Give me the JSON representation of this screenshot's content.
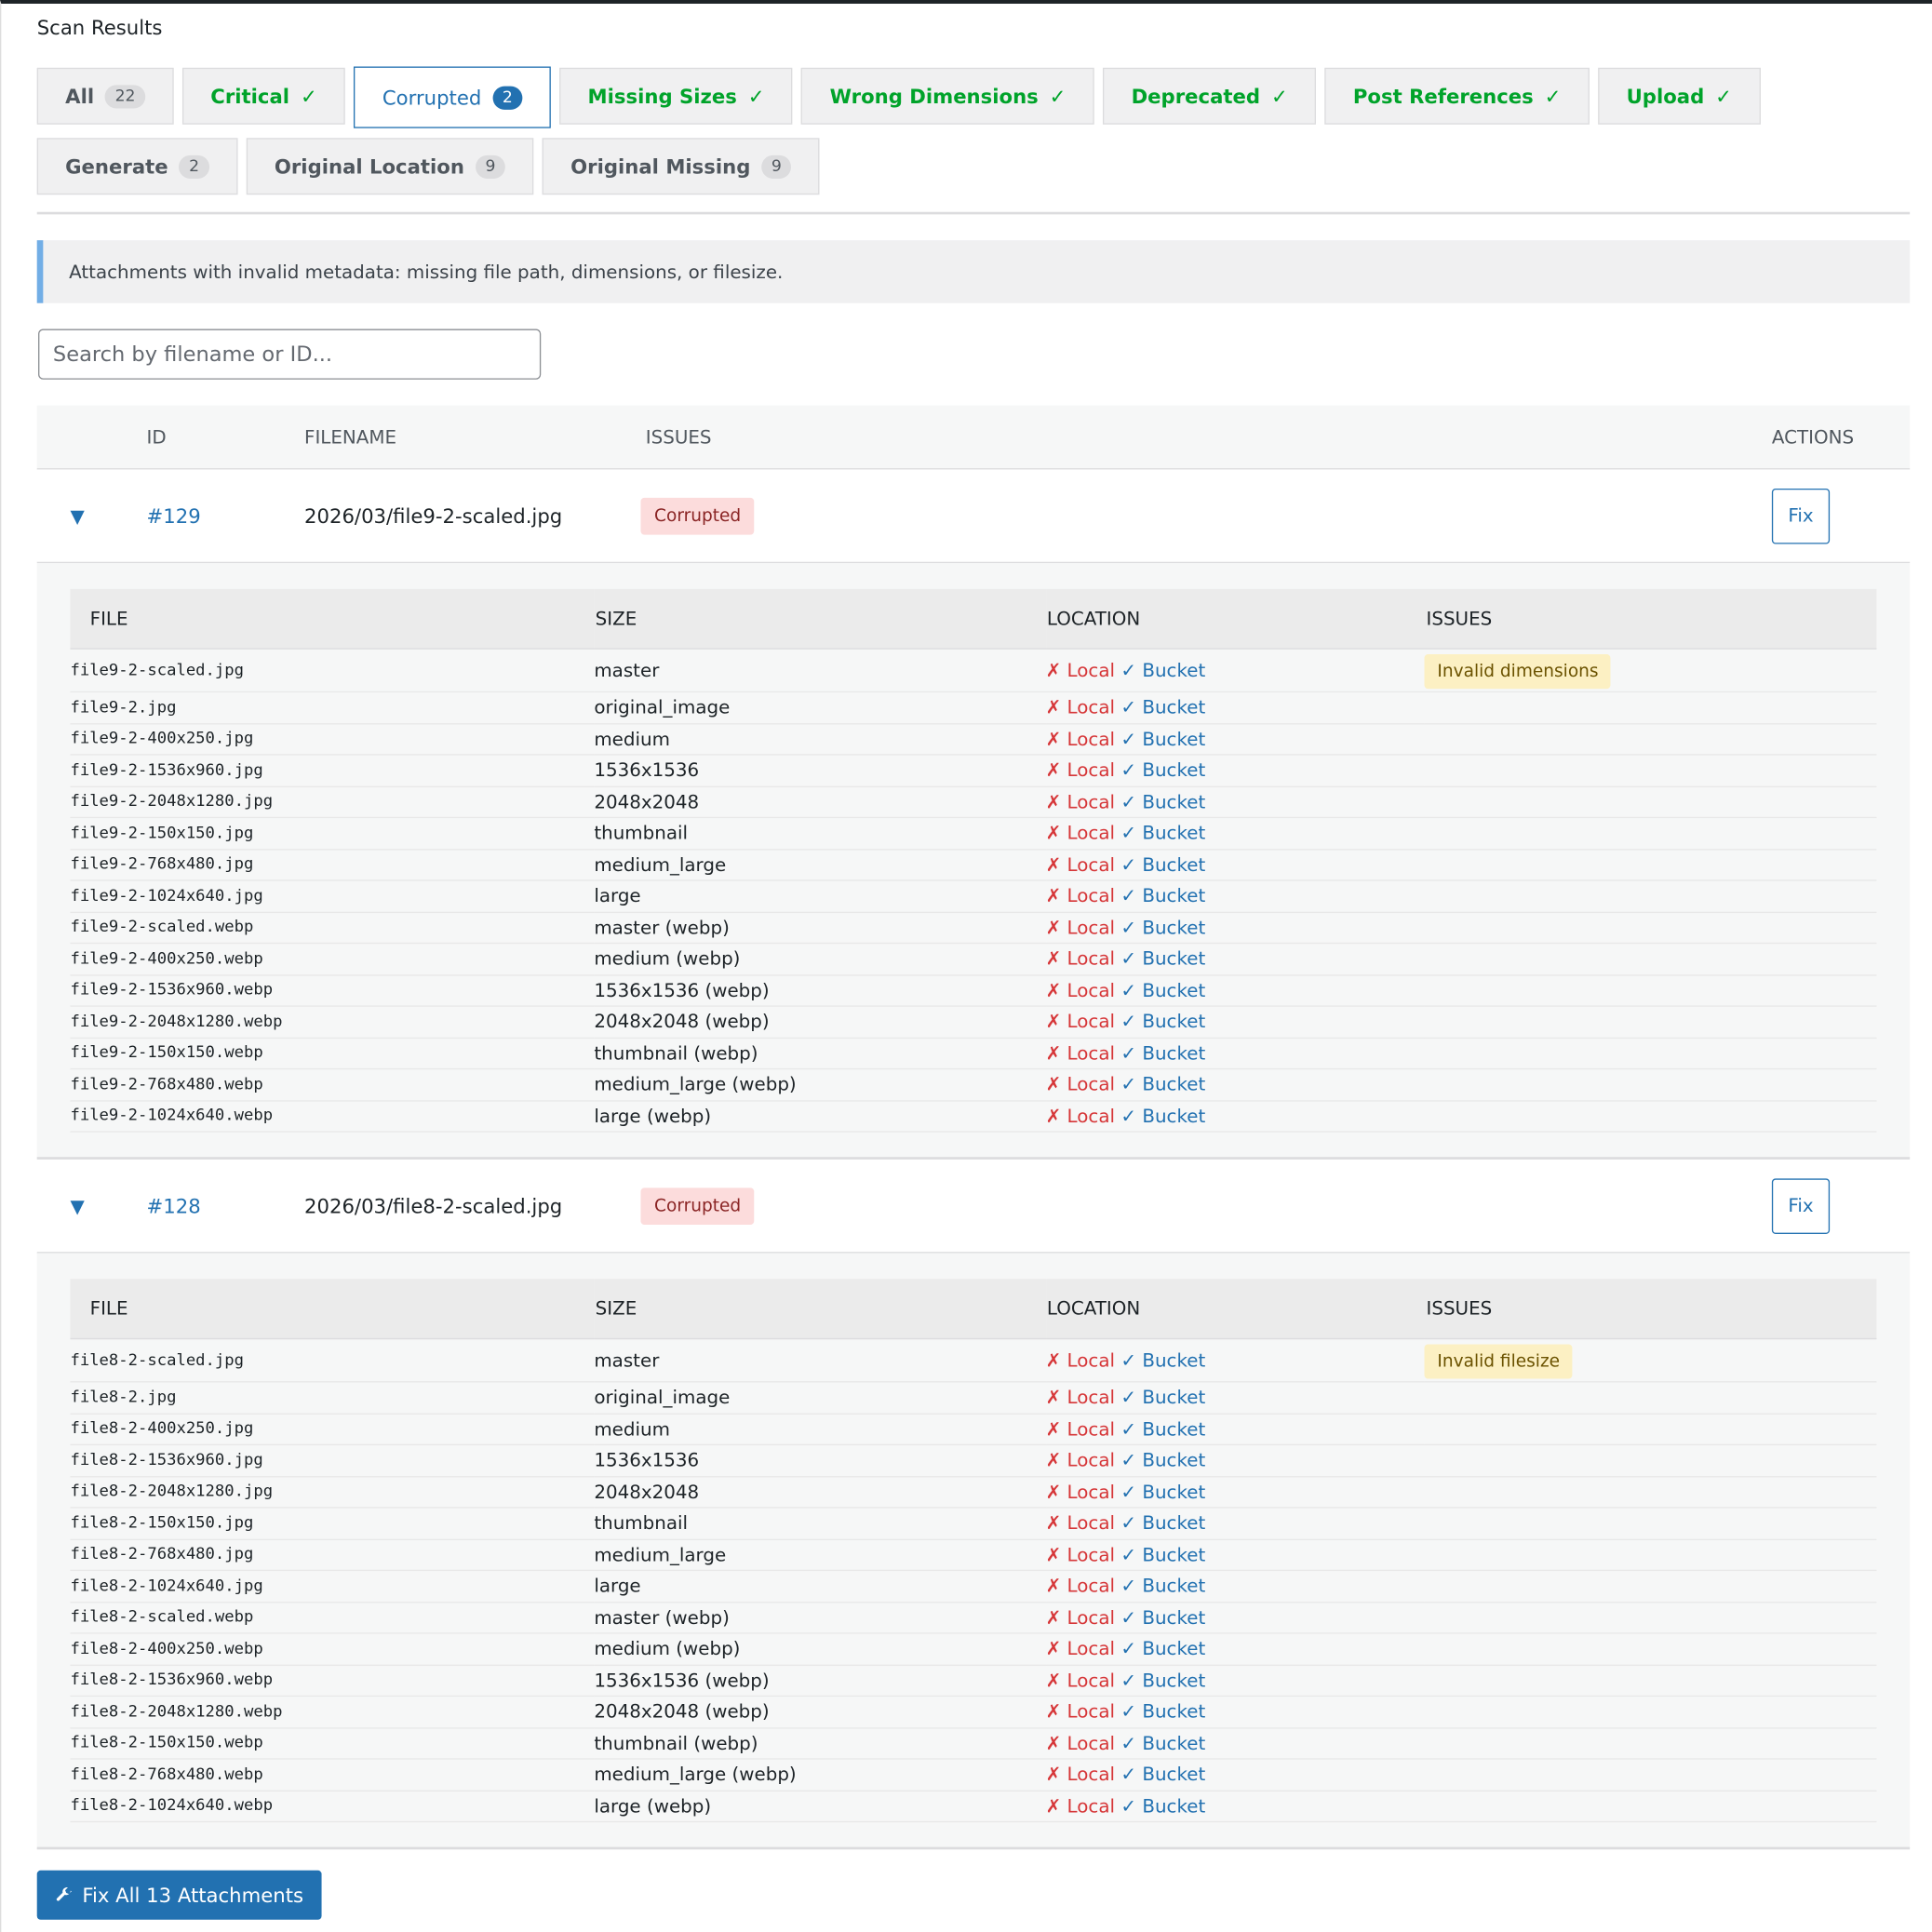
{
  "header": {
    "title": "Scan Results"
  },
  "tabs": [
    {
      "label": "All",
      "badge": "22",
      "state": "neutral"
    },
    {
      "label": "Critical",
      "check": "✓",
      "state": "ok"
    },
    {
      "label": "Corrupted",
      "badge": "2",
      "state": "active"
    },
    {
      "label": "Missing Sizes",
      "check": "✓",
      "state": "ok"
    },
    {
      "label": "Wrong Dimensions",
      "check": "✓",
      "state": "ok"
    },
    {
      "label": "Deprecated",
      "check": "✓",
      "state": "ok"
    },
    {
      "label": "Post References",
      "check": "✓",
      "state": "ok"
    },
    {
      "label": "Upload",
      "check": "✓",
      "state": "ok"
    },
    {
      "label": "Generate",
      "badge": "2",
      "state": "neutral"
    },
    {
      "label": "Original Location",
      "badge": "9",
      "state": "neutral"
    },
    {
      "label": "Original Missing",
      "badge": "9",
      "state": "neutral"
    }
  ],
  "notice": "Attachments with invalid metadata: missing file path, dimensions, or filesize.",
  "search": {
    "placeholder": "Search by filename or ID..."
  },
  "table": {
    "headers": [
      "ID",
      "FILENAME",
      "ISSUES",
      "ACTIONS"
    ],
    "attachments": [
      {
        "toggle": "▼",
        "id": "#129",
        "filename": "2026/03/file9-2-scaled.jpg",
        "issue": "Corrupted",
        "action": "Fix",
        "detail_headers": [
          "FILE",
          "SIZE",
          "LOCATION",
          "ISSUES"
        ],
        "files": [
          {
            "file": "file9-2-scaled.jpg",
            "size": "master",
            "local_mark": "✗",
            "local": "Local",
            "bucket_mark": "✓",
            "bucket": "Bucket",
            "issue": "Invalid dimensions"
          },
          {
            "file": "file9-2.jpg",
            "size": "original_image",
            "local_mark": "✗",
            "local": "Local",
            "bucket_mark": "✓",
            "bucket": "Bucket"
          },
          {
            "file": "file9-2-400x250.jpg",
            "size": "medium",
            "local_mark": "✗",
            "local": "Local",
            "bucket_mark": "✓",
            "bucket": "Bucket"
          },
          {
            "file": "file9-2-1536x960.jpg",
            "size": "1536x1536",
            "local_mark": "✗",
            "local": "Local",
            "bucket_mark": "✓",
            "bucket": "Bucket"
          },
          {
            "file": "file9-2-2048x1280.jpg",
            "size": "2048x2048",
            "local_mark": "✗",
            "local": "Local",
            "bucket_mark": "✓",
            "bucket": "Bucket"
          },
          {
            "file": "file9-2-150x150.jpg",
            "size": "thumbnail",
            "local_mark": "✗",
            "local": "Local",
            "bucket_mark": "✓",
            "bucket": "Bucket"
          },
          {
            "file": "file9-2-768x480.jpg",
            "size": "medium_large",
            "local_mark": "✗",
            "local": "Local",
            "bucket_mark": "✓",
            "bucket": "Bucket"
          },
          {
            "file": "file9-2-1024x640.jpg",
            "size": "large",
            "local_mark": "✗",
            "local": "Local",
            "bucket_mark": "✓",
            "bucket": "Bucket"
          },
          {
            "file": "file9-2-scaled.webp",
            "size": "master (webp)",
            "local_mark": "✗",
            "local": "Local",
            "bucket_mark": "✓",
            "bucket": "Bucket"
          },
          {
            "file": "file9-2-400x250.webp",
            "size": "medium (webp)",
            "local_mark": "✗",
            "local": "Local",
            "bucket_mark": "✓",
            "bucket": "Bucket"
          },
          {
            "file": "file9-2-1536x960.webp",
            "size": "1536x1536 (webp)",
            "local_mark": "✗",
            "local": "Local",
            "bucket_mark": "✓",
            "bucket": "Bucket"
          },
          {
            "file": "file9-2-2048x1280.webp",
            "size": "2048x2048 (webp)",
            "local_mark": "✗",
            "local": "Local",
            "bucket_mark": "✓",
            "bucket": "Bucket"
          },
          {
            "file": "file9-2-150x150.webp",
            "size": "thumbnail (webp)",
            "local_mark": "✗",
            "local": "Local",
            "bucket_mark": "✓",
            "bucket": "Bucket"
          },
          {
            "file": "file9-2-768x480.webp",
            "size": "medium_large (webp)",
            "local_mark": "✗",
            "local": "Local",
            "bucket_mark": "✓",
            "bucket": "Bucket"
          },
          {
            "file": "file9-2-1024x640.webp",
            "size": "large (webp)",
            "local_mark": "✗",
            "local": "Local",
            "bucket_mark": "✓",
            "bucket": "Bucket"
          }
        ]
      },
      {
        "toggle": "▼",
        "id": "#128",
        "filename": "2026/03/file8-2-scaled.jpg",
        "issue": "Corrupted",
        "action": "Fix",
        "detail_headers": [
          "FILE",
          "SIZE",
          "LOCATION",
          "ISSUES"
        ],
        "files": [
          {
            "file": "file8-2-scaled.jpg",
            "size": "master",
            "local_mark": "✗",
            "local": "Local",
            "bucket_mark": "✓",
            "bucket": "Bucket",
            "issue": "Invalid filesize"
          },
          {
            "file": "file8-2.jpg",
            "size": "original_image",
            "local_mark": "✗",
            "local": "Local",
            "bucket_mark": "✓",
            "bucket": "Bucket"
          },
          {
            "file": "file8-2-400x250.jpg",
            "size": "medium",
            "local_mark": "✗",
            "local": "Local",
            "bucket_mark": "✓",
            "bucket": "Bucket"
          },
          {
            "file": "file8-2-1536x960.jpg",
            "size": "1536x1536",
            "local_mark": "✗",
            "local": "Local",
            "bucket_mark": "✓",
            "bucket": "Bucket"
          },
          {
            "file": "file8-2-2048x1280.jpg",
            "size": "2048x2048",
            "local_mark": "✗",
            "local": "Local",
            "bucket_mark": "✓",
            "bucket": "Bucket"
          },
          {
            "file": "file8-2-150x150.jpg",
            "size": "thumbnail",
            "local_mark": "✗",
            "local": "Local",
            "bucket_mark": "✓",
            "bucket": "Bucket"
          },
          {
            "file": "file8-2-768x480.jpg",
            "size": "medium_large",
            "local_mark": "✗",
            "local": "Local",
            "bucket_mark": "✓",
            "bucket": "Bucket"
          },
          {
            "file": "file8-2-1024x640.jpg",
            "size": "large",
            "local_mark": "✗",
            "local": "Local",
            "bucket_mark": "✓",
            "bucket": "Bucket"
          },
          {
            "file": "file8-2-scaled.webp",
            "size": "master (webp)",
            "local_mark": "✗",
            "local": "Local",
            "bucket_mark": "✓",
            "bucket": "Bucket"
          },
          {
            "file": "file8-2-400x250.webp",
            "size": "medium (webp)",
            "local_mark": "✗",
            "local": "Local",
            "bucket_mark": "✓",
            "bucket": "Bucket"
          },
          {
            "file": "file8-2-1536x960.webp",
            "size": "1536x1536 (webp)",
            "local_mark": "✗",
            "local": "Local",
            "bucket_mark": "✓",
            "bucket": "Bucket"
          },
          {
            "file": "file8-2-2048x1280.webp",
            "size": "2048x2048 (webp)",
            "local_mark": "✗",
            "local": "Local",
            "bucket_mark": "✓",
            "bucket": "Bucket"
          },
          {
            "file": "file8-2-150x150.webp",
            "size": "thumbnail (webp)",
            "local_mark": "✗",
            "local": "Local",
            "bucket_mark": "✓",
            "bucket": "Bucket"
          },
          {
            "file": "file8-2-768x480.webp",
            "size": "medium_large (webp)",
            "local_mark": "✗",
            "local": "Local",
            "bucket_mark": "✓",
            "bucket": "Bucket"
          },
          {
            "file": "file8-2-1024x640.webp",
            "size": "large (webp)",
            "local_mark": "✗",
            "local": "Local",
            "bucket_mark": "✓",
            "bucket": "Bucket"
          }
        ]
      }
    ]
  },
  "footer": {
    "button": "Fix All 13 Attachments"
  }
}
